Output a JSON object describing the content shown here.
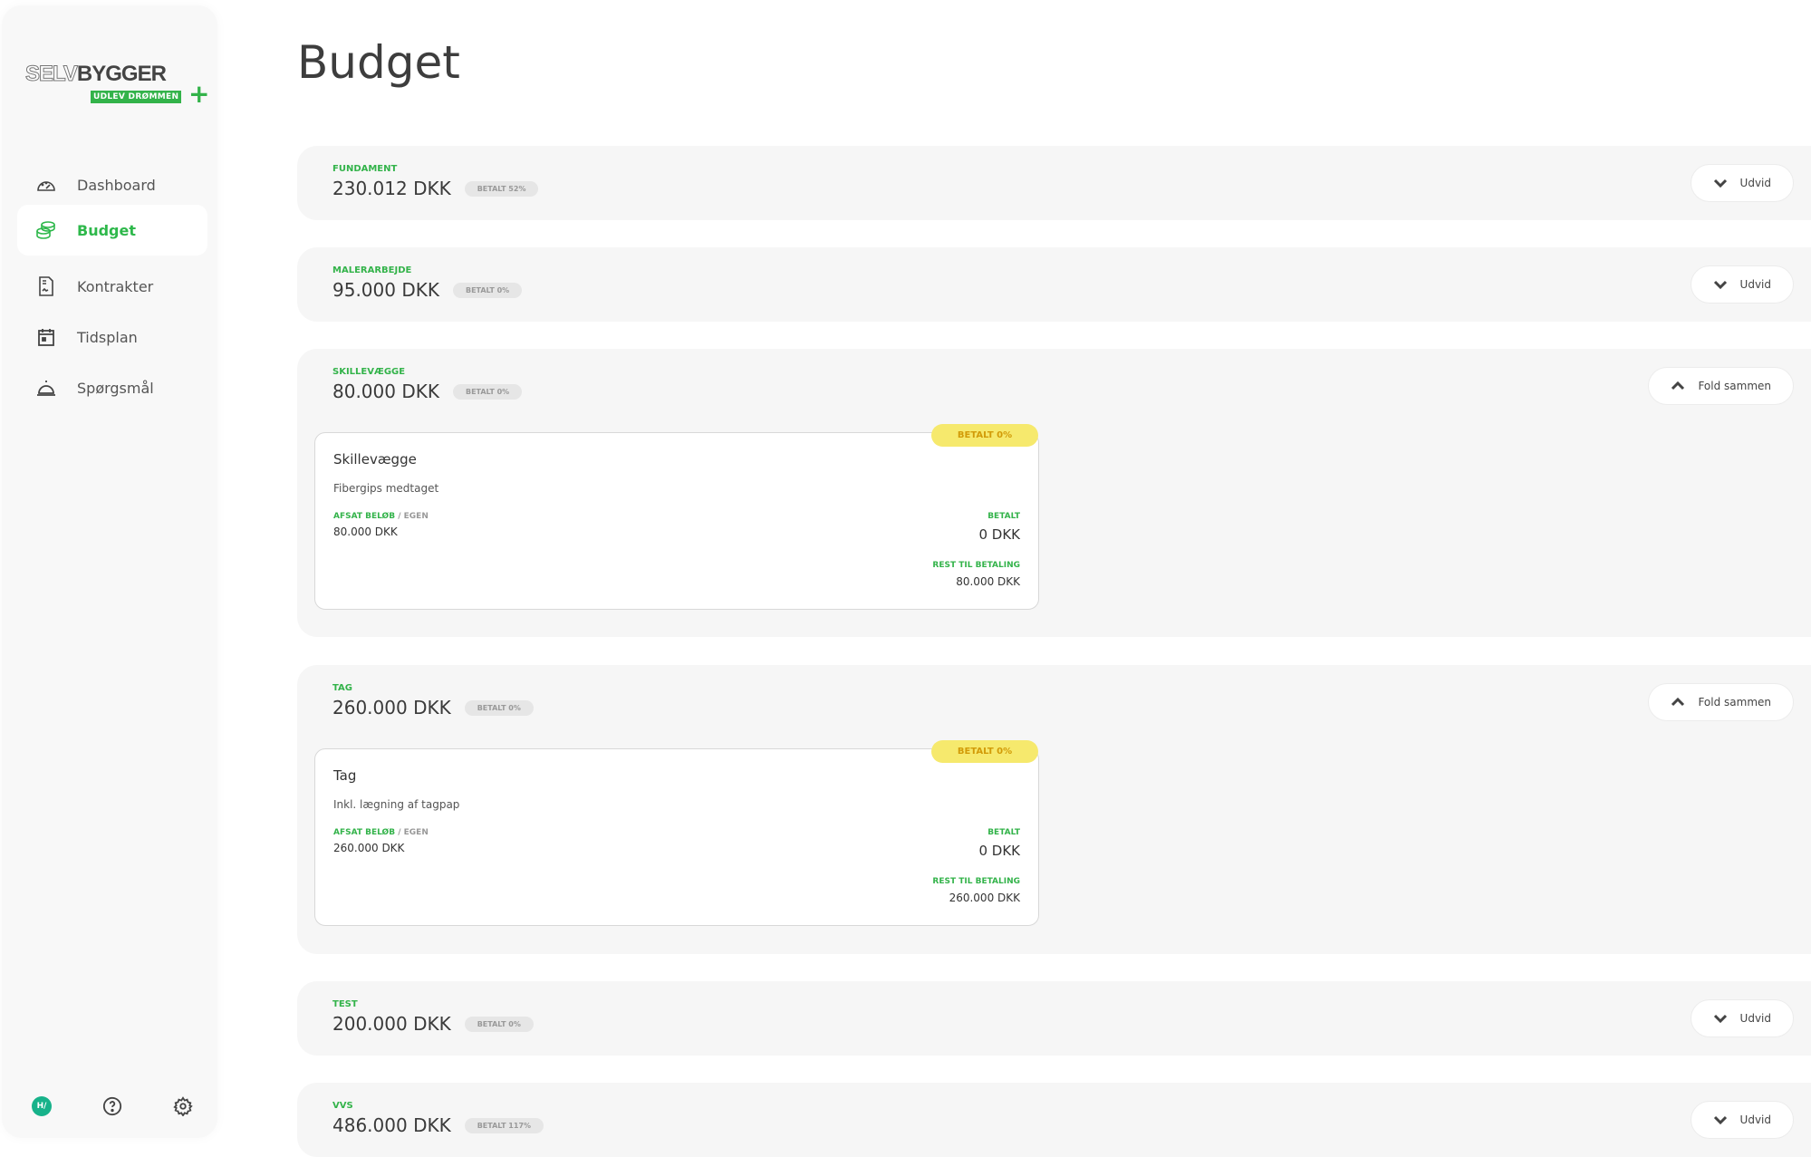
{
  "brand": {
    "logo_text_light": "SELV",
    "logo_text_bold": "BYGGER",
    "tagline": "UDLEV DRØMMEN",
    "accent": "#33b34a"
  },
  "sidebar": {
    "items": [
      {
        "label": "Dashboard",
        "icon": "dashboard-gauge-icon",
        "active": false
      },
      {
        "label": "Budget",
        "icon": "coins-stack-icon",
        "active": true
      },
      {
        "label": "Kontrakter",
        "icon": "contract-document-icon",
        "active": false
      },
      {
        "label": "Tidsplan",
        "icon": "calendar-icon",
        "active": false
      },
      {
        "label": "Spørgsmål",
        "icon": "service-bell-icon",
        "active": false
      }
    ],
    "avatar_initials": "H/",
    "help_icon": "question-circle-icon",
    "settings_icon": "gear-icon"
  },
  "page": {
    "title": "Budget"
  },
  "sections": [
    {
      "label": "FUNDAMENT",
      "amount": "230.012 DKK",
      "paid_badge": "BETALT 52%",
      "button": "Udvid",
      "expanded": false
    },
    {
      "label": "MALERARBEJDE",
      "amount": "95.000 DKK",
      "paid_badge": "BETALT 0%",
      "button": "Udvid",
      "expanded": false
    },
    {
      "label": "SKILLEVÆGGE",
      "amount": "80.000 DKK",
      "paid_badge": "BETALT 0%",
      "button": "Fold sammen",
      "expanded": true,
      "card": {
        "badge": "BETALT 0%",
        "title": "Skillevægge",
        "description": "Fibergips medtaget",
        "allocated_label": "AFSAT BELØB",
        "allocated_sub": "/ EGEN",
        "allocated_value": "80.000 DKK",
        "paid_label": "BETALT",
        "paid_value": "0 DKK",
        "rest_label": "REST TIL BETALING",
        "rest_value": "80.000 DKK"
      }
    },
    {
      "label": "TAG",
      "amount": "260.000 DKK",
      "paid_badge": "BETALT 0%",
      "button": "Fold sammen",
      "expanded": true,
      "card": {
        "badge": "BETALT 0%",
        "title": "Tag",
        "description": "Inkl. lægning af tagpap",
        "allocated_label": "AFSAT BELØB",
        "allocated_sub": "/ EGEN",
        "allocated_value": "260.000 DKK",
        "paid_label": "BETALT",
        "paid_value": "0 DKK",
        "rest_label": "REST TIL BETALING",
        "rest_value": "260.000 DKK"
      }
    },
    {
      "label": "TEST",
      "amount": "200.000 DKK",
      "paid_badge": "BETALT 0%",
      "button": "Udvid",
      "expanded": false
    },
    {
      "label": "VVS",
      "amount": "486.000 DKK",
      "paid_badge": "BETALT 117%",
      "button": "Udvid",
      "expanded": false
    }
  ]
}
